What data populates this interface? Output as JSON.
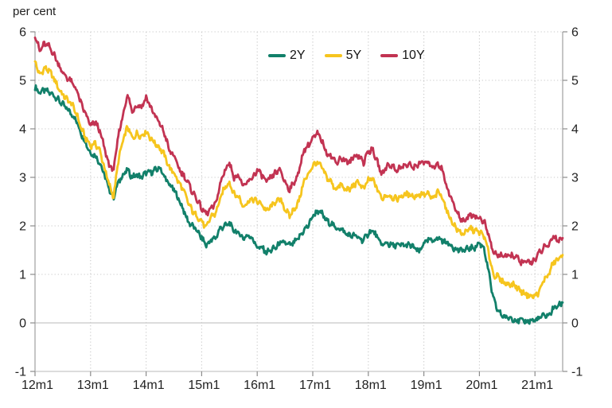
{
  "chart_data": {
    "type": "line",
    "title": "",
    "unit_label": "per cent",
    "frequency": "monthly",
    "x_start": "2012m1",
    "x_end": "2021m7",
    "x_tick_labels": [
      "12m1",
      "13m1",
      "14m1",
      "15m1",
      "16m1",
      "17m1",
      "18m1",
      "19m1",
      "20m1",
      "21m1"
    ],
    "y_ticks": [
      -1,
      0,
      1,
      2,
      3,
      4,
      5,
      6
    ],
    "ylim": [
      -1,
      6
    ],
    "grid": "dotted",
    "legend_position": "top-center",
    "series": [
      {
        "name": "2Y",
        "color": "#12806a",
        "values": [
          4.85,
          4.75,
          4.8,
          4.75,
          4.7,
          4.6,
          4.5,
          4.4,
          4.3,
          4.15,
          3.9,
          3.7,
          3.5,
          3.45,
          3.3,
          3.05,
          2.75,
          2.6,
          2.9,
          3.05,
          3.15,
          3.0,
          3.05,
          3.0,
          3.1,
          3.1,
          3.15,
          3.2,
          3.0,
          2.85,
          2.75,
          2.55,
          2.35,
          2.1,
          2.0,
          1.9,
          1.75,
          1.6,
          1.7,
          1.75,
          1.95,
          2.0,
          2.05,
          1.9,
          1.85,
          1.75,
          1.8,
          1.75,
          1.55,
          1.55,
          1.45,
          1.5,
          1.55,
          1.65,
          1.65,
          1.6,
          1.65,
          1.75,
          1.9,
          2.0,
          2.2,
          2.3,
          2.25,
          2.1,
          2.05,
          1.95,
          1.95,
          1.85,
          1.8,
          1.8,
          1.75,
          1.7,
          1.85,
          1.9,
          1.75,
          1.6,
          1.65,
          1.6,
          1.6,
          1.6,
          1.6,
          1.6,
          1.55,
          1.45,
          1.65,
          1.7,
          1.7,
          1.75,
          1.7,
          1.65,
          1.6,
          1.5,
          1.5,
          1.5,
          1.55,
          1.55,
          1.65,
          1.55,
          1.05,
          0.5,
          0.25,
          0.15,
          0.1,
          0.1,
          0.05,
          0.05,
          0.02,
          0.05,
          0.05,
          0.1,
          0.15,
          0.15,
          0.3,
          0.35,
          0.42
        ]
      },
      {
        "name": "5Y",
        "color": "#f6c51e",
        "values": [
          5.4,
          5.1,
          5.25,
          5.2,
          5.05,
          4.85,
          4.7,
          4.6,
          4.5,
          4.3,
          4.0,
          3.8,
          3.65,
          3.7,
          3.55,
          3.2,
          2.85,
          2.6,
          3.35,
          3.75,
          4.05,
          3.8,
          3.9,
          3.85,
          3.95,
          3.8,
          3.7,
          3.6,
          3.45,
          3.2,
          3.1,
          2.9,
          2.75,
          2.5,
          2.3,
          2.2,
          2.1,
          1.95,
          2.2,
          2.25,
          2.55,
          2.8,
          2.9,
          2.65,
          2.6,
          2.4,
          2.5,
          2.55,
          2.5,
          2.45,
          2.3,
          2.4,
          2.5,
          2.55,
          2.35,
          2.2,
          2.35,
          2.5,
          2.9,
          3.05,
          3.25,
          3.3,
          3.2,
          3.0,
          2.9,
          2.75,
          2.85,
          2.75,
          2.75,
          2.85,
          2.9,
          2.75,
          2.95,
          2.95,
          2.75,
          2.55,
          2.65,
          2.6,
          2.55,
          2.6,
          2.65,
          2.65,
          2.6,
          2.65,
          2.65,
          2.65,
          2.55,
          2.7,
          2.6,
          2.3,
          2.1,
          1.95,
          1.85,
          1.85,
          1.95,
          1.9,
          1.87,
          1.8,
          1.45,
          1.0,
          0.95,
          0.85,
          0.8,
          0.8,
          0.75,
          0.65,
          0.6,
          0.55,
          0.55,
          0.65,
          0.9,
          1.0,
          1.25,
          1.3,
          1.4
        ]
      },
      {
        "name": "10Y",
        "color": "#c23352",
        "values": [
          5.95,
          5.6,
          5.75,
          5.7,
          5.55,
          5.35,
          5.15,
          5.05,
          4.95,
          4.8,
          4.5,
          4.3,
          4.05,
          4.15,
          3.95,
          3.6,
          3.25,
          3.15,
          3.85,
          4.3,
          4.7,
          4.35,
          4.5,
          4.45,
          4.65,
          4.45,
          4.25,
          4.1,
          3.9,
          3.55,
          3.45,
          3.2,
          3.05,
          2.9,
          2.7,
          2.55,
          2.35,
          2.25,
          2.35,
          2.45,
          2.85,
          3.15,
          3.3,
          3.0,
          3.05,
          2.8,
          2.9,
          3.0,
          3.15,
          3.05,
          2.9,
          3.0,
          3.1,
          3.15,
          2.9,
          2.75,
          2.9,
          3.1,
          3.55,
          3.65,
          3.8,
          3.9,
          3.75,
          3.5,
          3.45,
          3.3,
          3.4,
          3.35,
          3.3,
          3.45,
          3.45,
          3.3,
          3.55,
          3.55,
          3.3,
          3.05,
          3.25,
          3.25,
          3.15,
          3.2,
          3.25,
          3.25,
          3.2,
          3.3,
          3.3,
          3.3,
          3.2,
          3.3,
          3.15,
          2.8,
          2.55,
          2.3,
          2.15,
          2.1,
          2.25,
          2.2,
          2.15,
          2.1,
          1.8,
          1.45,
          1.4,
          1.4,
          1.35,
          1.4,
          1.35,
          1.25,
          1.25,
          1.25,
          1.3,
          1.45,
          1.55,
          1.6,
          1.8,
          1.7,
          1.75
        ]
      }
    ]
  }
}
